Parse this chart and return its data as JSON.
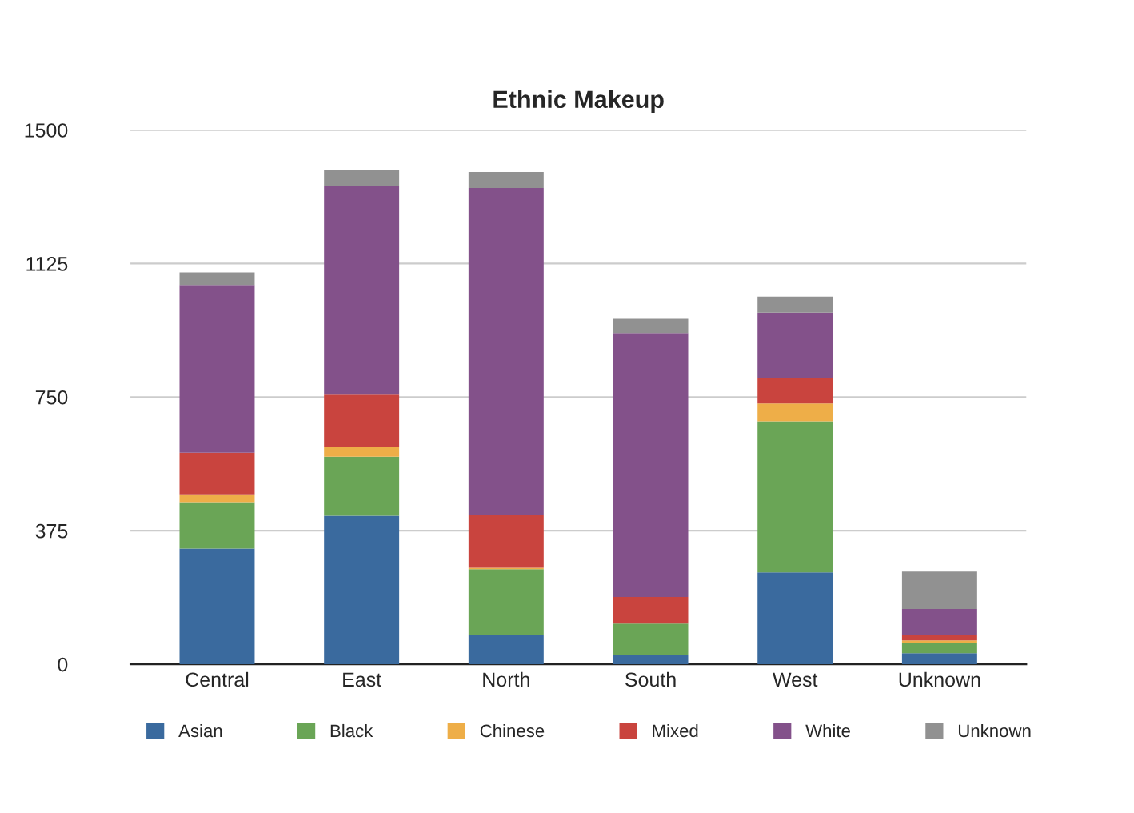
{
  "chart_data": {
    "type": "bar",
    "title": "Ethnic Makeup",
    "stacked": true,
    "categories": [
      "Central",
      "East",
      "North",
      "South",
      "West",
      "Unknown"
    ],
    "series": [
      {
        "name": "Asian",
        "color": "#3a6a9e",
        "values": [
          325,
          417,
          81,
          27,
          258,
          31
        ]
      },
      {
        "name": "Black",
        "color": "#6aa556",
        "values": [
          130,
          166,
          186,
          87,
          424,
          30
        ]
      },
      {
        "name": "Chinese",
        "color": "#eeae48",
        "values": [
          22,
          27,
          4,
          0,
          50,
          6
        ]
      },
      {
        "name": "Mixed",
        "color": "#c9443e",
        "values": [
          117,
          147,
          148,
          75,
          72,
          16
        ]
      },
      {
        "name": "White",
        "color": "#83518a",
        "values": [
          471,
          585,
          918,
          741,
          183,
          72
        ]
      },
      {
        "name": "Unknown",
        "color": "#919191",
        "values": [
          35,
          45,
          45,
          40,
          45,
          105
        ]
      }
    ],
    "ylim": [
      0,
      1500
    ],
    "yticks": [
      0,
      375,
      750,
      1125,
      1500
    ],
    "grid": "y",
    "legend": "bottom"
  }
}
